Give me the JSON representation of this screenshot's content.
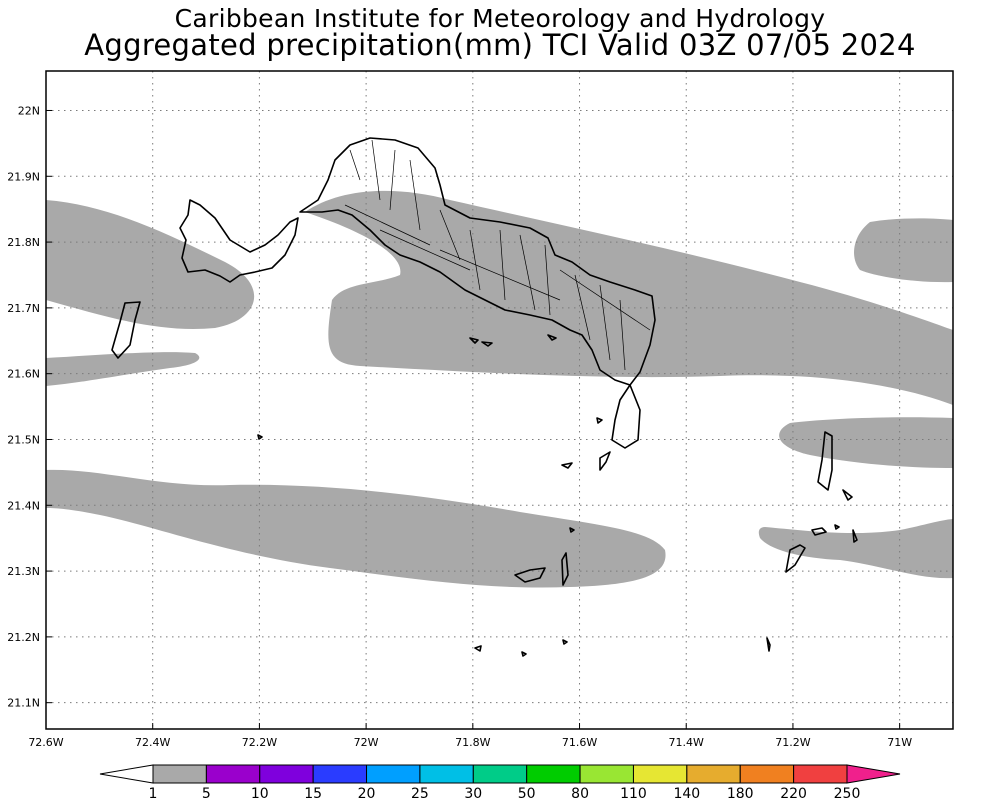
{
  "header": {
    "line1": "Caribbean Institute for Meteorology and Hydrology",
    "line2": "Aggregated precipitation(mm) TCI Valid 03Z 07/05 2024"
  },
  "map": {
    "region": "Turks and Caicos Islands",
    "lon_range": [
      -72.6,
      -70.9
    ],
    "lat_range": [
      21.06,
      22.06
    ],
    "lon_ticks": [
      {
        "v": -72.6,
        "label": "72.6W"
      },
      {
        "v": -72.4,
        "label": "72.4W"
      },
      {
        "v": -72.2,
        "label": "72.2W"
      },
      {
        "v": -72.0,
        "label": "72W"
      },
      {
        "v": -71.8,
        "label": "71.8W"
      },
      {
        "v": -71.6,
        "label": "71.6W"
      },
      {
        "v": -71.4,
        "label": "71.4W"
      },
      {
        "v": -71.2,
        "label": "71.2W"
      },
      {
        "v": -71.0,
        "label": "71W"
      }
    ],
    "lat_ticks": [
      {
        "v": 22.0,
        "label": "22N"
      },
      {
        "v": 21.9,
        "label": "21.9N"
      },
      {
        "v": 21.8,
        "label": "21.8N"
      },
      {
        "v": 21.7,
        "label": "21.7N"
      },
      {
        "v": 21.6,
        "label": "21.6N"
      },
      {
        "v": 21.5,
        "label": "21.5N"
      },
      {
        "v": 21.4,
        "label": "21.4N"
      },
      {
        "v": 21.3,
        "label": "21.3N"
      },
      {
        "v": 21.2,
        "label": "21.2N"
      },
      {
        "v": 21.1,
        "label": "21.1N"
      }
    ],
    "grid": "dotted",
    "precip_fill_color": "#a9a9a9",
    "land_outline_color": "#000000"
  },
  "colorbar": {
    "labels": [
      "1",
      "5",
      "10",
      "15",
      "20",
      "25",
      "30",
      "50",
      "80",
      "110",
      "140",
      "180",
      "220",
      "250"
    ],
    "colors": [
      "#a9a9a9",
      "#9a00cc",
      "#7f00dd",
      "#2a3cff",
      "#009fff",
      "#00bfe6",
      "#00cc88",
      "#00cc00",
      "#99e633",
      "#e6e633",
      "#e6ac2e",
      "#f08020",
      "#f04040",
      "#f0208c"
    ],
    "under_color": "#ffffff",
    "over_color": "#f0208c"
  }
}
